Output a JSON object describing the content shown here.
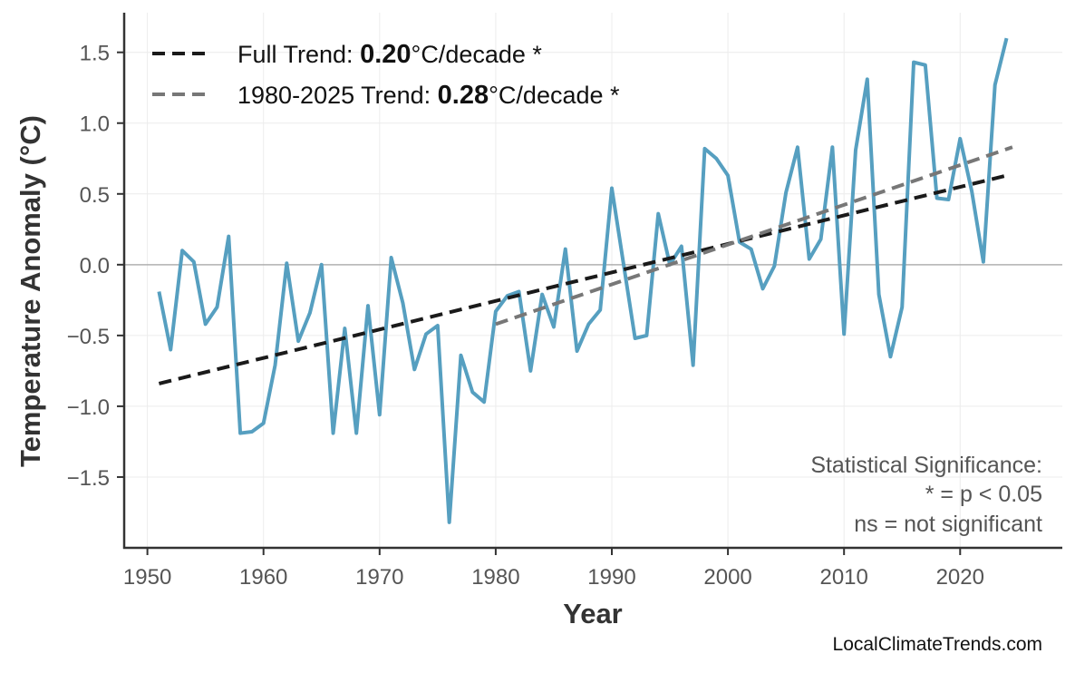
{
  "chart_data": {
    "type": "line",
    "title": "",
    "xlabel": "Year",
    "ylabel": "Temperature Anomaly (°C)",
    "xlim": [
      1948,
      2028.8
    ],
    "ylim": [
      -2.0,
      1.78
    ],
    "grid": true,
    "legend_placement": "top-left",
    "xticks": [
      1950,
      1960,
      1970,
      1980,
      1990,
      2000,
      2010,
      2020
    ],
    "yticks": [
      -1.5,
      -1.0,
      -0.5,
      0.0,
      0.5,
      1.0,
      1.5
    ],
    "ytick_labels": [
      "−1.5",
      "−1.0",
      "−0.5",
      "0.0",
      "0.5",
      "1.0",
      "1.5"
    ],
    "colors": {
      "series": "#569fc0",
      "full_trend": "#1a1a1a",
      "recent_trend": "#777777",
      "zero_line": "#b0b0b0",
      "grid": "#ececec"
    },
    "series": [
      {
        "x": [
          1951,
          1952,
          1953,
          1954,
          1955,
          1956,
          1957,
          1958,
          1959,
          1960,
          1961,
          1962,
          1963,
          1964,
          1965,
          1966,
          1967,
          1968,
          1969,
          1970,
          1971,
          1972,
          1973,
          1974,
          1975,
          1976,
          1977,
          1978,
          1979,
          1980,
          1981,
          1982,
          1983,
          1984,
          1985,
          1986,
          1987,
          1988,
          1989,
          1990,
          1991,
          1992,
          1993,
          1994,
          1995,
          1996,
          1997,
          1998,
          1999,
          2000,
          2001,
          2002,
          2003,
          2004,
          2005,
          2006,
          2007,
          2008,
          2009,
          2010,
          2011,
          2012,
          2013,
          2014,
          2015,
          2016,
          2017,
          2018,
          2019,
          2020,
          2021,
          2022,
          2023,
          2024
        ],
        "y": [
          -0.19,
          -0.6,
          0.1,
          0.02,
          -0.42,
          -0.3,
          0.2,
          -1.19,
          -1.18,
          -1.12,
          -0.71,
          0.01,
          -0.54,
          -0.34,
          0.0,
          -1.19,
          -0.45,
          -1.19,
          -0.29,
          -1.06,
          0.05,
          -0.27,
          -0.74,
          -0.49,
          -0.43,
          -1.82,
          -0.64,
          -0.9,
          -0.97,
          -0.33,
          -0.22,
          -0.19,
          -0.75,
          -0.21,
          -0.44,
          0.11,
          -0.61,
          -0.42,
          -0.32,
          0.54,
          0.01,
          -0.52,
          -0.5,
          0.36,
          0.0,
          0.13,
          -0.71,
          0.82,
          0.75,
          0.63,
          0.16,
          0.11,
          -0.17,
          -0.01,
          0.51,
          0.83,
          0.04,
          0.18,
          0.83,
          -0.49,
          0.81,
          1.31,
          -0.21,
          -0.65,
          -0.3,
          1.43,
          1.41,
          0.47,
          0.46,
          0.89,
          0.52,
          0.02,
          1.27,
          1.6
        ]
      }
    ],
    "trend_lines": [
      {
        "x": [
          1951,
          2024
        ],
        "y": [
          -0.84,
          0.63
        ],
        "legend_prefix": "Full Trend: ",
        "legend_value": "0.20",
        "legend_suffix": "°C/decade *"
      },
      {
        "x": [
          1980,
          2024.5
        ],
        "y": [
          -0.42,
          0.83
        ],
        "legend_prefix": "1980-2025 Trend: ",
        "legend_value": "0.28",
        "legend_suffix": "°C/decade *"
      }
    ],
    "annotation": [
      "Statistical Significance:",
      "* = p < 0.05",
      "ns = not significant"
    ]
  },
  "watermark": "LocalClimateTrends.com"
}
